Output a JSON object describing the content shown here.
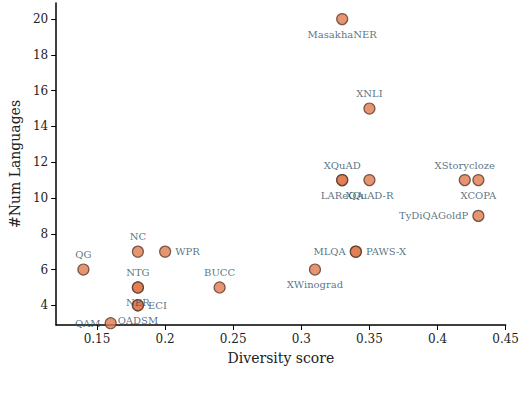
{
  "chart_data": {
    "type": "scatter",
    "x_label": "Diversity score",
    "y_label": "#Num Languages",
    "points": [
      {
        "label": "MasakhaNER",
        "x": 0.33,
        "y": 20
      },
      {
        "label": "XNLI",
        "x": 0.35,
        "y": 15
      },
      {
        "label": "XQuAD",
        "x": 0.33,
        "y": 11
      },
      {
        "label": "LAReQA",
        "x": 0.33,
        "y": 11
      },
      {
        "label": "XQuAD-R",
        "x": 0.35,
        "y": 11
      },
      {
        "label": "XStorycloze",
        "x": 0.42,
        "y": 11
      },
      {
        "label": "XCOPA",
        "x": 0.43,
        "y": 11
      },
      {
        "label": "TyDiQAGoldP",
        "x": 0.43,
        "y": 9
      },
      {
        "label": "MLQA",
        "x": 0.34,
        "y": 7
      },
      {
        "label": "PAWS-X",
        "x": 0.34,
        "y": 7
      },
      {
        "label": "XWinograd",
        "x": 0.31,
        "y": 6
      },
      {
        "label": "BUCC",
        "x": 0.24,
        "y": 5
      },
      {
        "label": "NC",
        "x": 0.18,
        "y": 7
      },
      {
        "label": "WPR",
        "x": 0.2,
        "y": 7
      },
      {
        "label": "QG",
        "x": 0.14,
        "y": 6
      },
      {
        "label": "NTG",
        "x": 0.18,
        "y": 5
      },
      {
        "label": "NER",
        "x": 0.18,
        "y": 5
      },
      {
        "label": "ECI",
        "x": 0.18,
        "y": 4
      },
      {
        "label": "QADSM",
        "x": 0.18,
        "y": 4
      },
      {
        "label": "QAM",
        "x": 0.16,
        "y": 3
      }
    ],
    "color": "#e07b4f",
    "marker": "circle",
    "xlim": [
      0.12,
      0.45
    ],
    "xticks": [
      0.15,
      0.2,
      0.25,
      0.3,
      0.35,
      0.4,
      0.45
    ],
    "ylim": [
      2.9,
      20.9
    ],
    "yticks": [
      4,
      6,
      8,
      10,
      12,
      14,
      16,
      18,
      20
    ],
    "grid": false
  }
}
